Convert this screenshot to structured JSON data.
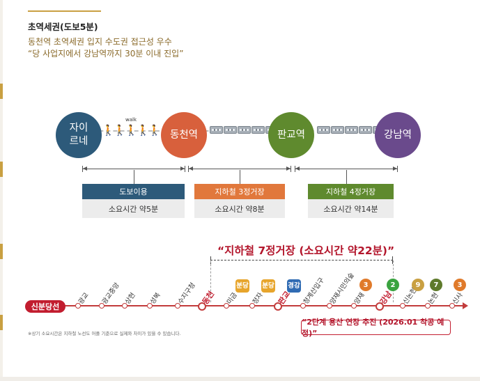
{
  "header": {
    "title": "초역세권(도보5분)",
    "line1": "동천역 초역세권 입지 수도권 접근성 우수",
    "line2": "“당 사업지에서 강남역까지 30분 이내 진입”"
  },
  "route": {
    "stations": [
      {
        "name": "자이\n르네",
        "color": "#2d5a7a"
      },
      {
        "name": "동천역",
        "color": "#d8603c"
      },
      {
        "name": "판교역",
        "color": "#5f8a2e"
      },
      {
        "name": "강남역",
        "color": "#6a4a8c"
      }
    ],
    "walk_label": "walk",
    "walkers": "🚶🚶🚶🚶🚶🚶🚶",
    "segments": [
      {
        "title": "도보이용",
        "time": "소요시간 약5분",
        "color": "#2d5a7a"
      },
      {
        "title": "지하철 3정거장",
        "time": "소요시간 약8분",
        "color": "#e1783c"
      },
      {
        "title": "지하철 4정거장",
        "time": "소요시간 약14분",
        "color": "#5f8a2e"
      }
    ]
  },
  "subway": {
    "headline": "“지하철 7정거장 (소요시간 약22분)”",
    "line_name": "신분당선",
    "stations": [
      "광교",
      "광교중앙",
      "상현",
      "성복",
      "수지구청",
      "동천",
      "미금",
      "정자",
      "판교",
      "청계산입구",
      "양재시민의숲",
      "양재",
      "강남",
      "신논현",
      "논현",
      "신사"
    ],
    "highlight": [
      "동천",
      "판교",
      "강남"
    ],
    "transfer_tags": [
      {
        "label": "분당",
        "color": "#e7a52c"
      },
      {
        "label": "분당",
        "color": "#e7a52c"
      },
      {
        "label": "경강",
        "color": "#2f6bb3"
      }
    ],
    "line_numbers": [
      {
        "label": "3",
        "color": "#e07a2a"
      },
      {
        "label": "2",
        "color": "#3aa340"
      },
      {
        "label": "9",
        "color": "#c9a042"
      },
      {
        "label": "7",
        "color": "#5e7a2b"
      },
      {
        "label": "3",
        "color": "#e07a2a"
      }
    ],
    "note": "※상기 소요시간은 지하철 노선도 어플 기준으로 실제와 차이가 있을 수 있습니다.",
    "extension": "“2단계 용산 연장 추진 (2026.01 착공 예정)”"
  }
}
